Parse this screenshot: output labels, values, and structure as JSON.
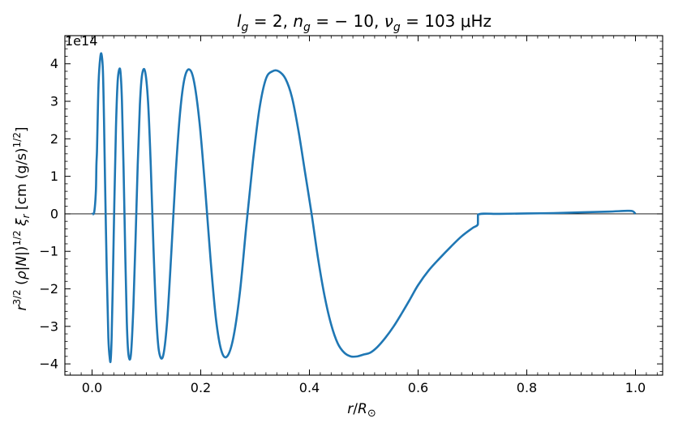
{
  "chart_data": {
    "type": "line",
    "title": "l_g = 2, n_g = − 10, ν_g = 103 μHz",
    "title_parts": {
      "l": "l",
      "l_sub": "g",
      "l_val": " = 2, ",
      "n": "n",
      "n_sub": "g",
      "n_val": " = − 10, ",
      "nu": "ν",
      "nu_sub": "g",
      "nu_val": " = 103 ",
      "unit": "μHz"
    },
    "xlabel": "r/R⊙",
    "xlabel_parts": {
      "r": "r",
      "slash": "/",
      "R": "R",
      "sub": "⊙"
    },
    "ylabel": "r^{3/2} (ρ|N|)^{1/2} ξ_r [cm (g/s)^{1/2}]",
    "y_offset_text": "1e14",
    "xlim": [
      -0.05,
      1.05
    ],
    "ylim": [
      -4.3,
      4.75
    ],
    "x_ticks": [
      0.0,
      0.2,
      0.4,
      0.6,
      0.8,
      1.0
    ],
    "x_tick_labels": [
      "0.0",
      "0.2",
      "0.4",
      "0.6",
      "0.8",
      "1.0"
    ],
    "y_ticks": [
      -4,
      -3,
      -2,
      -1,
      0,
      1,
      2,
      3,
      4
    ],
    "y_tick_labels": [
      "−4",
      "−3",
      "−2",
      "−1",
      "0",
      "1",
      "2",
      "3",
      "4"
    ],
    "zero_line": true,
    "grid": false,
    "series": [
      {
        "color": "#1f77b4",
        "x": [
          0.0,
          0.004,
          0.007,
          0.008,
          0.009,
          0.01,
          0.012,
          0.015,
          0.0175,
          0.02,
          0.022,
          0.024,
          0.027,
          0.03,
          0.033,
          0.0345,
          0.036,
          0.038,
          0.041,
          0.044,
          0.047,
          0.05,
          0.0525,
          0.055,
          0.058,
          0.061,
          0.064,
          0.067,
          0.0715,
          0.076,
          0.08,
          0.084,
          0.088,
          0.092,
          0.0975,
          0.103,
          0.108,
          0.113,
          0.118,
          0.123,
          0.1305,
          0.138,
          0.146,
          0.154,
          0.162,
          0.17,
          0.179,
          0.188,
          0.198,
          0.208,
          0.218,
          0.228,
          0.238,
          0.2485,
          0.26,
          0.272,
          0.284,
          0.296,
          0.308,
          0.32,
          0.332,
          0.3435,
          0.356,
          0.368,
          0.38,
          0.392,
          0.404,
          0.416,
          0.428,
          0.44,
          0.452,
          0.464,
          0.476,
          0.488,
          0.5,
          0.512,
          0.525,
          0.54,
          0.555,
          0.57,
          0.585,
          0.6,
          0.62,
          0.64,
          0.66,
          0.68,
          0.7,
          0.71,
          0.7102,
          0.75,
          0.8,
          0.85,
          0.9,
          0.95,
          0.985,
          0.995,
          1.0
        ],
        "y": [
          0.0,
          0.05,
          0.6,
          1.3,
          1.65,
          2.3,
          3.5,
          4.15,
          4.25,
          3.8,
          2.5,
          0.8,
          -1.5,
          -3.3,
          -3.9,
          -3.85,
          -3.3,
          -2.0,
          0.3,
          2.3,
          3.5,
          3.85,
          3.75,
          3.0,
          1.2,
          -1.0,
          -2.9,
          -3.75,
          -3.75,
          -2.5,
          -0.7,
          1.3,
          2.9,
          3.7,
          3.8,
          3.0,
          1.3,
          -0.9,
          -2.7,
          -3.65,
          -3.8,
          -2.9,
          -1.0,
          1.1,
          2.7,
          3.6,
          3.85,
          3.5,
          2.4,
          0.7,
          -1.2,
          -2.8,
          -3.65,
          -3.8,
          -3.3,
          -2.1,
          -0.3,
          1.4,
          2.8,
          3.6,
          3.8,
          3.8,
          3.6,
          3.1,
          2.2,
          1.1,
          0.0,
          -1.2,
          -2.2,
          -2.95,
          -3.45,
          -3.7,
          -3.8,
          -3.8,
          -3.75,
          -3.7,
          -3.55,
          -3.3,
          -3.0,
          -2.65,
          -2.28,
          -1.9,
          -1.5,
          -1.18,
          -0.88,
          -0.6,
          -0.38,
          -0.28,
          -0.02,
          0.0,
          0.01,
          0.02,
          0.04,
          0.06,
          0.08,
          0.07,
          0.0
        ]
      }
    ]
  }
}
